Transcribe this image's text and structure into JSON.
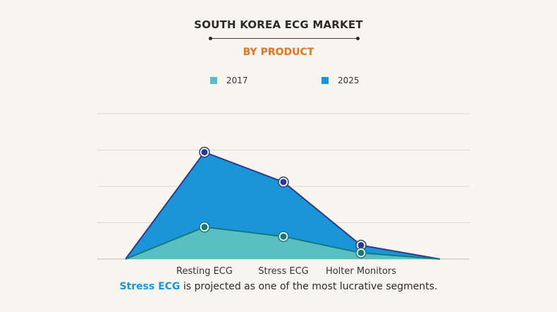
{
  "title": "SOUTH KOREA ECG MARKET",
  "subtitle": "BY PRODUCT",
  "colors": {
    "accent_orange": "#e8731c",
    "series_2017": "#5bbfc1",
    "series_2025": "#1a96d8",
    "line_2017": "#137a7c",
    "line_2025": "#2b3a8f",
    "highlight": "#1a96d8"
  },
  "legend": [
    {
      "label": "2017"
    },
    {
      "label": "2025"
    }
  ],
  "caption": {
    "highlight": "Stress ECG",
    "rest": " is projected as one of the most lucrative segments."
  },
  "chart_data": {
    "type": "area",
    "title": "SOUTH KOREA ECG MARKET",
    "subtitle": "BY PRODUCT",
    "categories": [
      "Resting ECG",
      "Stress ECG",
      "Holter Monitors"
    ],
    "x": [
      0,
      1,
      2,
      3,
      4
    ],
    "series": [
      {
        "name": "2017",
        "values": [
          0,
          0.88,
          0.62,
          0.17,
          0
        ],
        "marker_indices": [
          1,
          2,
          3
        ]
      },
      {
        "name": "2025",
        "values": [
          0,
          2.94,
          2.12,
          0.38,
          0
        ],
        "marker_indices": [
          1,
          2,
          3
        ]
      }
    ],
    "ylim": [
      0,
      4
    ],
    "grid": true,
    "legend_position": "top-center",
    "tick_labels_x": [
      "Resting ECG",
      "Stress ECG",
      "Holter Monitors"
    ],
    "tick_positions_x": [
      1,
      2,
      3
    ]
  }
}
